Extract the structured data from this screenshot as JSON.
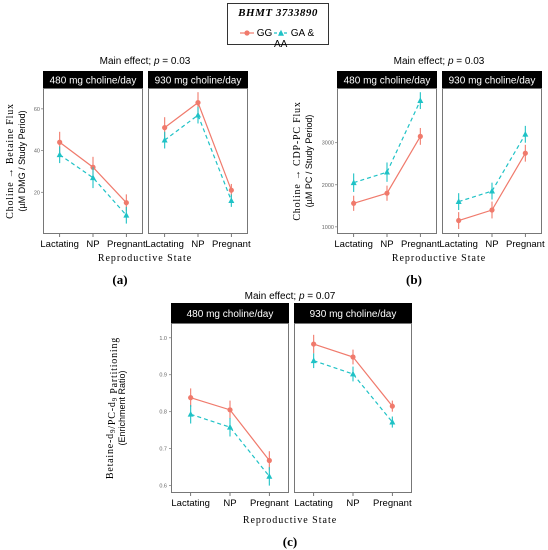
{
  "legend": {
    "title": "BHMT 3733890",
    "entries": [
      {
        "label": "GG",
        "color": "#F07A6C",
        "marker": "circle",
        "line": "solid"
      },
      {
        "label": "GA & AA",
        "color": "#1FC2C6",
        "marker": "triangle",
        "line": "dashed"
      }
    ]
  },
  "chart_data": [
    {
      "type": "line",
      "panel_label": "(a)",
      "title": "Main effect; p = 0.03",
      "title_prefix": "Main effect; ",
      "title_italic": "p",
      "title_suffix": " = 0.03",
      "ylabel_main": "Choline → Betaine Flux",
      "ylabel_sub": "(µM DMG / Study Period)",
      "xlabel": "Reproductive State",
      "categories": [
        "Lactating",
        "NP",
        "Pregnant"
      ],
      "ylim": [
        0,
        70
      ],
      "yticks": [
        20,
        40,
        60
      ],
      "facets": [
        {
          "label": "480 mg choline/day",
          "series": [
            {
              "name": "GG",
              "values": [
                44,
                32,
                15
              ],
              "err": [
                5,
                5,
                4
              ]
            },
            {
              "name": "GA & AA",
              "values": [
                38,
                27,
                9
              ],
              "err": [
                4,
                5,
                4
              ]
            }
          ]
        },
        {
          "label": "930 mg choline/day",
          "series": [
            {
              "name": "GG",
              "values": [
                51,
                63,
                21
              ],
              "err": [
                5,
                5,
                3
              ]
            },
            {
              "name": "GA & AA",
              "values": [
                45,
                57,
                16
              ],
              "err": [
                4,
                4,
                3
              ]
            }
          ]
        }
      ]
    },
    {
      "type": "line",
      "panel_label": "(b)",
      "title": "Main effect; p = 0.03",
      "title_prefix": "Main effect; ",
      "title_italic": "p",
      "title_suffix": " = 0.03",
      "ylabel_main": "Choline → CDP-PC Flux",
      "ylabel_sub": "(µM PC / Study Period)",
      "xlabel": "Reproductive State",
      "categories": [
        "Lactating",
        "NP",
        "Pregnant"
      ],
      "ylim": [
        830,
        4300
      ],
      "yticks": [
        1000,
        2000,
        3000
      ],
      "facets": [
        {
          "label": "480 mg choline/day",
          "series": [
            {
              "name": "GG",
              "values": [
                1560,
                1800,
                3150
              ],
              "err": [
                180,
                180,
                200
              ]
            },
            {
              "name": "GA & AA",
              "values": [
                2050,
                2300,
                4000
              ],
              "err": [
                220,
                230,
                200
              ]
            }
          ]
        },
        {
          "label": "930 mg choline/day",
          "series": [
            {
              "name": "GG",
              "values": [
                1150,
                1400,
                2750
              ],
              "err": [
                200,
                200,
                200
              ]
            },
            {
              "name": "GA & AA",
              "values": [
                1600,
                1850,
                3200
              ],
              "err": [
                200,
                200,
                200
              ]
            }
          ]
        }
      ]
    },
    {
      "type": "line",
      "panel_label": "(c)",
      "title": "Main effect; p = 0.07",
      "title_prefix": "Main effect; ",
      "title_italic": "p",
      "title_suffix": " = 0.07",
      "ylabel_main": "Betaine-d9/PC-d9 Partitioning",
      "ylabel_sub": "(Enrichment Ratio)",
      "xlabel": "Reproductive State",
      "categories": [
        "Lactating",
        "NP",
        "Pregnant"
      ],
      "ylim": [
        0.58,
        1.04
      ],
      "yticks": [
        0.6,
        0.7,
        0.8,
        0.9,
        1.0
      ],
      "ytick_labels": [
        "0.6",
        "0.7",
        "0.8",
        "0.9",
        "1.0"
      ],
      "facets": [
        {
          "label": "480 mg choline/day",
          "series": [
            {
              "name": "GG",
              "values": [
                0.838,
                0.805,
                0.668
              ],
              "err": [
                0.025,
                0.025,
                0.025
              ]
            },
            {
              "name": "GA & AA",
              "values": [
                0.793,
                0.758,
                0.625
              ],
              "err": [
                0.025,
                0.025,
                0.025
              ]
            }
          ]
        },
        {
          "label": "930 mg choline/day",
          "series": [
            {
              "name": "GG",
              "values": [
                0.983,
                0.948,
                0.815
              ],
              "err": [
                0.025,
                0.02,
                0.015
              ]
            },
            {
              "name": "GA & AA",
              "values": [
                0.938,
                0.902,
                0.772
              ],
              "err": [
                0.02,
                0.02,
                0.015
              ]
            }
          ]
        }
      ]
    }
  ]
}
